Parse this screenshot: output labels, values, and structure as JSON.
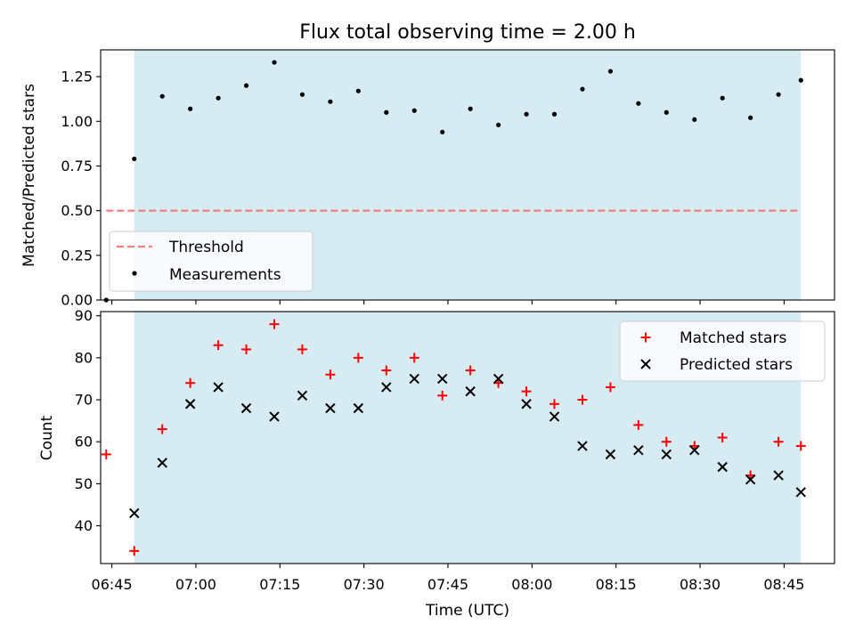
{
  "chart_data": [
    {
      "type": "scatter",
      "title": "Flux total observing time = 2.00 h",
      "xlabel": "",
      "ylabel": "Matched/Predicted stars",
      "ylim": [
        0,
        1.4
      ],
      "yticks": [
        "0.00",
        "0.25",
        "0.50",
        "0.75",
        "1.00",
        "1.25"
      ],
      "ytick_values": [
        0,
        0.25,
        0.5,
        0.75,
        1.0,
        1.25
      ],
      "shaded_span": [
        "06:49",
        "08:48"
      ],
      "shade_color": "#add8e6",
      "threshold": {
        "name": "Threshold",
        "value": 0.5,
        "x_range": [
          "06:44",
          "08:48"
        ],
        "color": "#f08080"
      },
      "legend": {
        "placement": "lower left",
        "entries": [
          "Threshold",
          "Measurements"
        ]
      },
      "series": [
        {
          "name": "Measurements",
          "marker": "dot",
          "color": "#000000",
          "x": [
            "06:44",
            "06:49",
            "06:54",
            "06:59",
            "07:04",
            "07:09",
            "07:14",
            "07:19",
            "07:24",
            "07:29",
            "07:34",
            "07:39",
            "07:44",
            "07:49",
            "07:54",
            "07:59",
            "08:04",
            "08:09",
            "08:14",
            "08:19",
            "08:24",
            "08:29",
            "08:34",
            "08:39",
            "08:44",
            "08:48"
          ],
          "y": [
            0.0,
            0.79,
            1.14,
            1.07,
            1.13,
            1.2,
            1.33,
            1.15,
            1.11,
            1.17,
            1.05,
            1.06,
            0.94,
            1.07,
            0.98,
            1.04,
            1.04,
            1.18,
            1.28,
            1.1,
            1.05,
            1.01,
            1.13,
            1.02,
            1.15,
            1.23
          ]
        }
      ]
    },
    {
      "type": "scatter",
      "xlabel": "Time (UTC)",
      "ylabel": "Count",
      "ylim": [
        31,
        91
      ],
      "yticks": [
        "40",
        "50",
        "60",
        "70",
        "80",
        "90"
      ],
      "ytick_values": [
        40,
        50,
        60,
        70,
        80,
        90
      ],
      "xlim": [
        "06:43",
        "08:54"
      ],
      "xticks": [
        "06:45",
        "07:00",
        "07:15",
        "07:30",
        "07:45",
        "08:00",
        "08:15",
        "08:30",
        "08:45"
      ],
      "shaded_span": [
        "06:49",
        "08:48"
      ],
      "shade_color": "#add8e6",
      "legend": {
        "placement": "upper right",
        "entries": [
          "Matched stars",
          "Predicted stars"
        ]
      },
      "series": [
        {
          "name": "Matched stars",
          "marker": "plus",
          "color": "#ff0000",
          "x": [
            "06:44",
            "06:49",
            "06:54",
            "06:59",
            "07:04",
            "07:09",
            "07:14",
            "07:19",
            "07:24",
            "07:29",
            "07:34",
            "07:39",
            "07:44",
            "07:49",
            "07:54",
            "07:59",
            "08:04",
            "08:09",
            "08:14",
            "08:19",
            "08:24",
            "08:29",
            "08:34",
            "08:39",
            "08:44",
            "08:48"
          ],
          "y": [
            57,
            34,
            63,
            74,
            83,
            82,
            88,
            82,
            76,
            80,
            77,
            80,
            71,
            77,
            74,
            72,
            69,
            70,
            73,
            64,
            60,
            59,
            61,
            52,
            60,
            59
          ]
        },
        {
          "name": "Predicted stars",
          "marker": "x",
          "color": "#000000",
          "x": [
            "06:49",
            "06:54",
            "06:59",
            "07:04",
            "07:09",
            "07:14",
            "07:19",
            "07:24",
            "07:29",
            "07:34",
            "07:39",
            "07:44",
            "07:49",
            "07:54",
            "07:59",
            "08:04",
            "08:09",
            "08:14",
            "08:19",
            "08:24",
            "08:29",
            "08:34",
            "08:39",
            "08:44",
            "08:48"
          ],
          "y": [
            43,
            55,
            69,
            73,
            68,
            66,
            71,
            68,
            68,
            73,
            75,
            75,
            72,
            75,
            69,
            66,
            59,
            57,
            58,
            57,
            58,
            54,
            51,
            52,
            48
          ]
        }
      ]
    }
  ]
}
